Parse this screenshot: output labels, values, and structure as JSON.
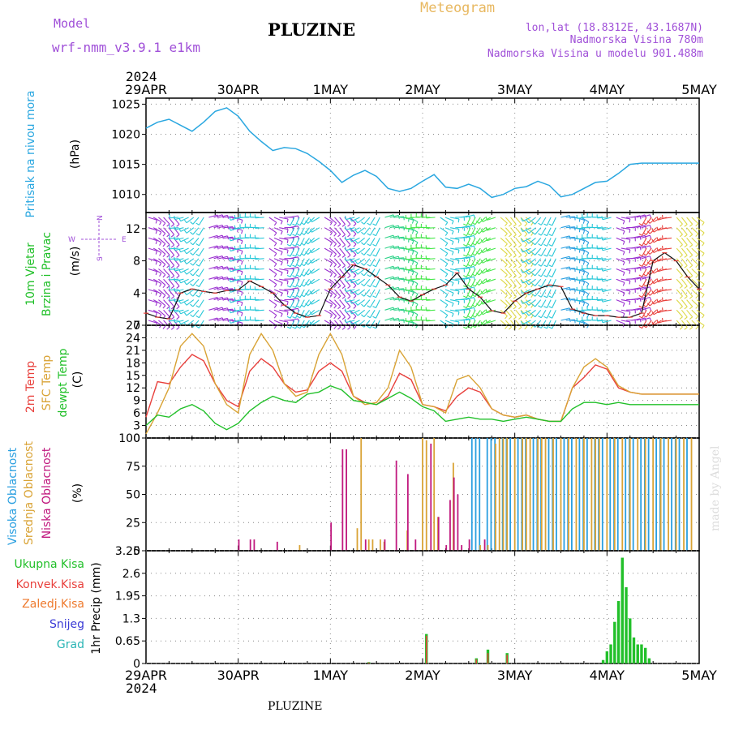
{
  "header": {
    "model_label": "Model",
    "model_name": "wrf-nmm_v3.9.1 e1km",
    "station": "PLUZINE",
    "meteogram": "Meteogram",
    "lonlat": "lon,lat (18.8312E, 43.1687N)",
    "elevation": "Nadmorska Visina 780m",
    "model_elevation": "Nadmorska Visina u modelu 901.488m",
    "footer_station": "PLUZINE",
    "credit": "made by Angel"
  },
  "colors": {
    "pressure": "#2aa7e0",
    "temp2m": "#e8403c",
    "sfc": "#d9a335",
    "dewpt": "#22c02a",
    "high_cloud": "#2a9fe0",
    "mid_cloud": "#d9a335",
    "low_cloud": "#c0187e",
    "total_precip": "#22c02a",
    "conv_precip": "#e8403c",
    "frozen_precip": "#ee7a2e",
    "snow": "#3a3ad6",
    "hail": "#2ab5b5",
    "purple_text": "#a050d8"
  },
  "chart_data": [
    {
      "type": "line",
      "panel": "pressure",
      "ylabel_lines": [
        "Pritisak na nivou mora",
        "(hPa)"
      ],
      "ylim": [
        1007,
        1026
      ],
      "yticks": [
        1010,
        1015,
        1020,
        1025
      ],
      "x_top_year": "2024",
      "x_bottom_year": "2024",
      "xlabels": [
        "29APR",
        "30APR",
        "1MAY",
        "2MAY",
        "3MAY",
        "4MAY",
        "5MAY"
      ],
      "x": [
        0,
        3,
        6,
        9,
        12,
        15,
        18,
        21,
        24,
        27,
        30,
        33,
        36,
        39,
        42,
        45,
        48,
        51,
        54,
        57,
        60,
        63,
        66,
        69,
        72,
        75,
        78,
        81,
        84,
        87,
        90,
        93,
        96,
        99,
        102,
        105,
        108,
        111,
        114,
        117,
        120,
        123,
        126,
        129,
        132,
        135,
        138,
        141,
        144
      ],
      "series": [
        {
          "name": "",
          "values": [
            1021.0,
            1022.0,
            1022.5,
            1021.5,
            1020.5,
            1022.0,
            1023.8,
            1024.4,
            1023.0,
            1020.5,
            1018.8,
            1017.3,
            1017.8,
            1017.6,
            1016.8,
            1015.5,
            1014.0,
            1012.0,
            1013.2,
            1014.0,
            1013.0,
            1011.0,
            1010.5,
            1011.0,
            1012.2,
            1013.3,
            1011.2,
            1011.0,
            1011.7,
            1011.0,
            1009.5,
            1010.0,
            1011.0,
            1011.3,
            1012.2,
            1011.5,
            1009.6,
            1010.0,
            1011.0,
            1012.0,
            1012.2,
            1013.5,
            1015.0,
            1015.2,
            1015.2,
            1015.2,
            1015.2,
            1015.2,
            1015.2
          ]
        }
      ]
    },
    {
      "type": "line",
      "panel": "wind",
      "ylabel_lines": [
        "10m Vjetar",
        "Brzina i Pravac",
        "(m/s)"
      ],
      "compass": {
        "n": "N",
        "s": "S",
        "e": "E",
        "w": "W"
      },
      "ylim": [
        0,
        14
      ],
      "yticks": [
        0,
        4,
        8,
        12
      ],
      "x": [
        0,
        3,
        6,
        9,
        12,
        15,
        18,
        21,
        24,
        27,
        30,
        33,
        36,
        39,
        42,
        45,
        48,
        51,
        54,
        57,
        60,
        63,
        66,
        69,
        72,
        75,
        78,
        81,
        84,
        87,
        90,
        93,
        96,
        99,
        102,
        105,
        108,
        111,
        114,
        117,
        120,
        123,
        126,
        129,
        132,
        135,
        138,
        141,
        144
      ],
      "series": [
        {
          "name": "",
          "values": [
            1.5,
            1.0,
            0.8,
            4.0,
            4.5,
            4.2,
            4.0,
            4.3,
            4.4,
            5.5,
            4.8,
            4.0,
            2.5,
            1.5,
            1.0,
            1.2,
            4.5,
            6.0,
            7.5,
            7.0,
            6.0,
            5.0,
            3.5,
            3.0,
            3.8,
            4.5,
            5.0,
            6.5,
            4.5,
            3.5,
            1.8,
            1.5,
            3.0,
            4.0,
            4.5,
            5.0,
            4.8,
            2.0,
            1.5,
            1.2,
            1.2,
            1.0,
            1.0,
            1.5,
            8.0,
            9.0,
            8.0,
            6.0,
            4.5
          ]
        }
      ],
      "barb_colors_by_segment": [
        "#9a30d0",
        "#28c8d8",
        "#9a30d0",
        "#28c8d8",
        "#9a30d0",
        "#28c8d8",
        "#9a30d0",
        "#28c8d8",
        "#2fd38a",
        "#46e84a",
        "#28c8d8",
        "#46e84a",
        "#ddd844",
        "#28c8d8",
        "#2a9fe0",
        "#28c8d8",
        "#9a30d0",
        "#e8403c",
        "#ddd844"
      ]
    },
    {
      "type": "line",
      "panel": "temperature",
      "ylabel_lines": [
        "2m Temp",
        "SFC Temp",
        "dewpt Temp",
        "(C)"
      ],
      "ylim": [
        0,
        27
      ],
      "yticks": [
        0,
        3,
        6,
        9,
        12,
        15,
        18,
        21,
        24,
        27
      ],
      "x": [
        0,
        3,
        6,
        9,
        12,
        15,
        18,
        21,
        24,
        27,
        30,
        33,
        36,
        39,
        42,
        45,
        48,
        51,
        54,
        57,
        60,
        63,
        66,
        69,
        72,
        75,
        78,
        81,
        84,
        87,
        90,
        93,
        96,
        99,
        102,
        105,
        108,
        111,
        114,
        117,
        120,
        123,
        126,
        129,
        132,
        135,
        138,
        141,
        144
      ],
      "series": [
        {
          "name": "2m Temp",
          "values": [
            5.0,
            13.5,
            13.0,
            17.0,
            20.0,
            18.5,
            13.0,
            9.0,
            7.5,
            16.0,
            19.0,
            17.0,
            13.0,
            11.0,
            11.5,
            16.0,
            18.0,
            16.0,
            10.0,
            8.5,
            8.0,
            10.0,
            15.5,
            14.0,
            8.0,
            7.5,
            6.5,
            10.0,
            12.0,
            11.0,
            7.0,
            5.5,
            5.0,
            5.5,
            4.5,
            4.0,
            4.0,
            12.0,
            14.5,
            17.5,
            16.5,
            12.0,
            11.0,
            10.5,
            10.5,
            10.5,
            10.5,
            10.5,
            10.5
          ]
        },
        {
          "name": "SFC Temp",
          "values": [
            1.0,
            6.0,
            12.0,
            22.0,
            25.0,
            22.0,
            13.0,
            8.0,
            6.0,
            20.0,
            25.0,
            21.0,
            13.0,
            10.0,
            11.0,
            20.0,
            25.0,
            20.0,
            10.0,
            8.0,
            8.5,
            12.0,
            21.0,
            17.0,
            8.0,
            7.5,
            6.0,
            14.0,
            15.0,
            12.0,
            7.0,
            5.5,
            5.0,
            5.5,
            4.5,
            4.0,
            4.0,
            12.0,
            17.0,
            19.0,
            17.0,
            12.5,
            11.0,
            10.5,
            10.5,
            10.5,
            10.5,
            10.5,
            10.5
          ]
        },
        {
          "name": "dewpt Temp",
          "values": [
            3.0,
            5.5,
            5.0,
            7.0,
            8.0,
            6.5,
            3.5,
            2.0,
            3.5,
            6.5,
            8.5,
            10.0,
            9.0,
            8.5,
            10.5,
            11.0,
            12.5,
            11.5,
            9.0,
            8.5,
            8.0,
            9.5,
            11.0,
            9.5,
            7.5,
            6.5,
            4.0,
            4.5,
            5.0,
            4.5,
            4.5,
            4.0,
            4.5,
            5.0,
            4.5,
            4.0,
            4.0,
            7.0,
            8.5,
            8.5,
            8.0,
            8.5,
            8.0,
            8.0,
            8.0,
            8.0,
            8.0,
            8.0,
            8.0
          ]
        }
      ]
    },
    {
      "type": "bar",
      "panel": "cloud",
      "ylabel_lines": [
        "Visoka Oblacnost",
        "Srednja Oblacnost",
        "Niska Oblacnost",
        "(%)"
      ],
      "ylim": [
        0,
        100
      ],
      "yticks": [
        0,
        25,
        50,
        75,
        100
      ],
      "series": [
        {
          "name": "Visoka Oblacnost",
          "x": [
            85,
            86,
            87,
            89,
            90,
            91,
            93,
            94,
            95,
            97,
            98,
            99,
            101,
            102,
            103,
            105,
            106,
            107,
            109,
            110,
            111,
            113,
            114,
            115,
            117,
            118,
            119,
            121,
            122,
            123,
            125,
            126,
            127,
            129,
            130,
            131,
            133,
            134,
            135,
            137,
            138,
            139,
            141
          ],
          "values": [
            100,
            100,
            100,
            100,
            100,
            100,
            100,
            100,
            100,
            100,
            100,
            100,
            100,
            100,
            100,
            100,
            100,
            100,
            100,
            100,
            100,
            100,
            100,
            100,
            100,
            100,
            100,
            100,
            100,
            100,
            100,
            100,
            100,
            100,
            100,
            100,
            100,
            100,
            100,
            100,
            100,
            100,
            100
          ]
        },
        {
          "name": "Srednja Oblacnost",
          "x": [
            40,
            55,
            56,
            58,
            59,
            61,
            62,
            68,
            72,
            73,
            75,
            76,
            80,
            87,
            89,
            91,
            92,
            93,
            94,
            96,
            98,
            99,
            100,
            102,
            103,
            104,
            106,
            108,
            110,
            112,
            114,
            116,
            117,
            118,
            120,
            122,
            124,
            126,
            128,
            130,
            132,
            134,
            136,
            138,
            140,
            142
          ],
          "values": [
            5,
            20,
            100,
            10,
            10,
            10,
            8,
            18,
            100,
            98,
            100,
            30,
            78,
            5,
            5,
            95,
            100,
            100,
            100,
            100,
            100,
            100,
            100,
            100,
            100,
            100,
            100,
            100,
            100,
            100,
            100,
            100,
            100,
            100,
            100,
            100,
            100,
            100,
            100,
            100,
            100,
            100,
            100,
            100,
            100,
            100
          ]
        },
        {
          "name": "Niska Oblacnost",
          "x": [
            24,
            27,
            28,
            34,
            48,
            51,
            52,
            57,
            62,
            65,
            68,
            70,
            74,
            76,
            78,
            79,
            80,
            81,
            82,
            84,
            88
          ],
          "values": [
            10,
            10,
            10,
            8,
            25,
            90,
            90,
            10,
            10,
            80,
            68,
            10,
            95,
            30,
            5,
            45,
            65,
            50,
            5,
            10,
            10
          ]
        }
      ]
    },
    {
      "type": "bar",
      "panel": "precip",
      "ylabel_lines": [
        "1hr Precip (mm)"
      ],
      "legend": [
        "Ukupna Kisa",
        "Konvek.Kisa",
        "Zaledj.Kisa",
        "Snijeg",
        "Grad"
      ],
      "ylim": [
        0,
        3.25
      ],
      "yticks": [
        0,
        0.65,
        1.3,
        1.95,
        2.6,
        3.25
      ],
      "ytick_labels": [
        "0",
        "0.65",
        "1.3",
        "1.95",
        "2.6",
        "3.25"
      ],
      "series": [
        {
          "name": "Ukupna Kisa",
          "x": [
            58,
            73,
            86,
            89,
            94,
            119,
            120,
            121,
            122,
            123,
            124,
            125,
            126,
            127,
            128,
            129,
            130,
            131
          ],
          "values": [
            0.04,
            0.85,
            0.15,
            0.4,
            0.3,
            0.1,
            0.35,
            0.55,
            1.2,
            1.8,
            3.05,
            2.2,
            1.3,
            0.75,
            0.55,
            0.55,
            0.45,
            0.15
          ]
        },
        {
          "name": "Konvek.Kisa",
          "x": [
            58,
            73,
            86,
            89,
            94
          ],
          "values": [
            0.03,
            0.8,
            0.12,
            0.3,
            0.25
          ]
        }
      ]
    }
  ]
}
